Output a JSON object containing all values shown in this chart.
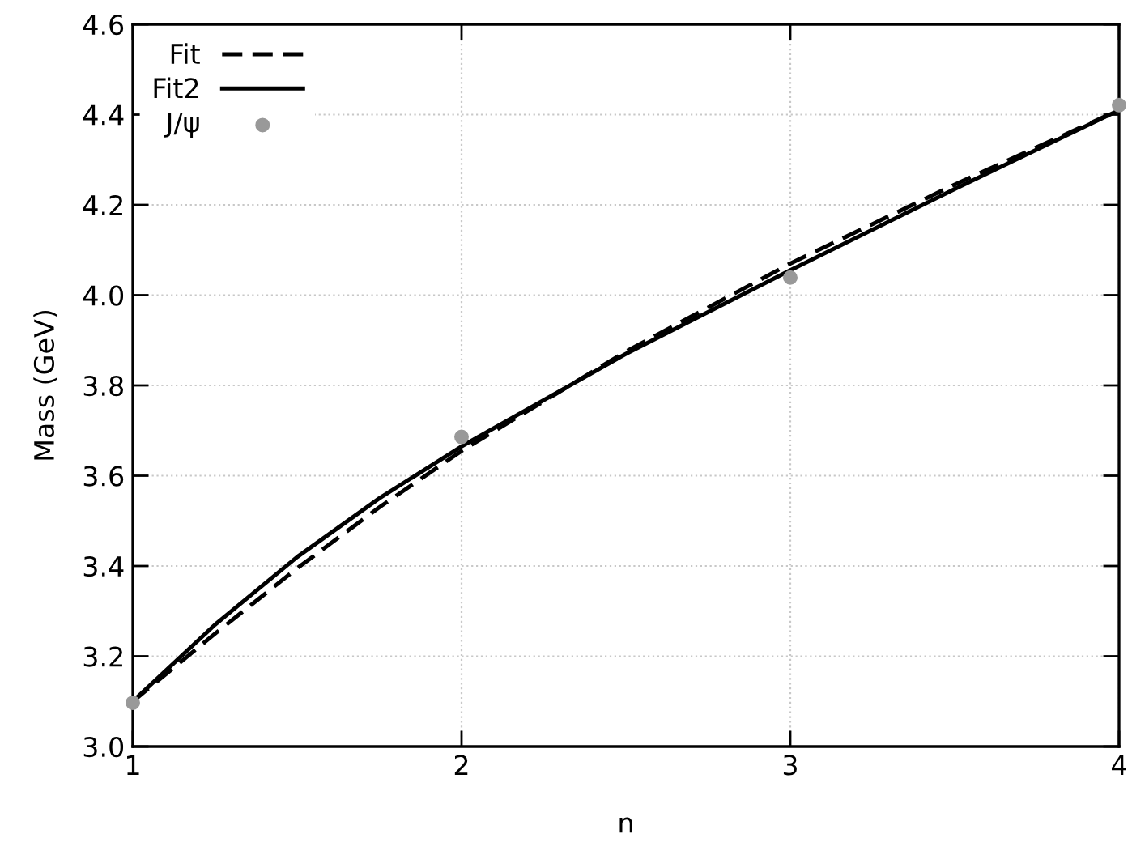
{
  "chart_data": {
    "type": "line",
    "xlabel": "n",
    "ylabel": "Mass (GeV)",
    "xlim": [
      1,
      4
    ],
    "ylim": [
      3.0,
      4.6
    ],
    "xticks": [
      1,
      2,
      3,
      4
    ],
    "yticks": [
      {
        "value": 3.0,
        "label": "3.0"
      },
      {
        "value": 3.2,
        "label": "3.2"
      },
      {
        "value": 3.4,
        "label": "3.4"
      },
      {
        "value": 3.6,
        "label": "3.6"
      },
      {
        "value": 3.8,
        "label": "3.8"
      },
      {
        "value": 4.0,
        "label": "4.0"
      },
      {
        "value": 4.2,
        "label": "4.2"
      },
      {
        "value": 4.4,
        "label": "4.4"
      },
      {
        "value": 4.6,
        "label": "4.6"
      }
    ],
    "grid": true,
    "legend": "top left",
    "series": [
      {
        "name": "Fit",
        "color": "#000000",
        "line_style": "dashed",
        "marker": "none",
        "x": [
          1,
          1.25,
          1.5,
          1.75,
          2,
          2.5,
          3,
          3.5,
          4
        ],
        "values": [
          3.1,
          3.25,
          3.395,
          3.53,
          3.655,
          3.875,
          4.07,
          4.245,
          4.41
        ]
      },
      {
        "name": "Fit2",
        "color": "#000000",
        "line_style": "solid",
        "marker": "none",
        "x": [
          1,
          1.25,
          1.5,
          1.75,
          2,
          2.5,
          3,
          3.5,
          4
        ],
        "values": [
          3.1,
          3.27,
          3.42,
          3.55,
          3.665,
          3.87,
          4.055,
          4.235,
          4.41
        ]
      },
      {
        "name": "J/ψ",
        "type": "scatter",
        "color": "#999999",
        "marker": "circle",
        "x": [
          1,
          2,
          3,
          4
        ],
        "values": [
          3.097,
          3.686,
          4.039,
          4.421
        ]
      }
    ]
  }
}
